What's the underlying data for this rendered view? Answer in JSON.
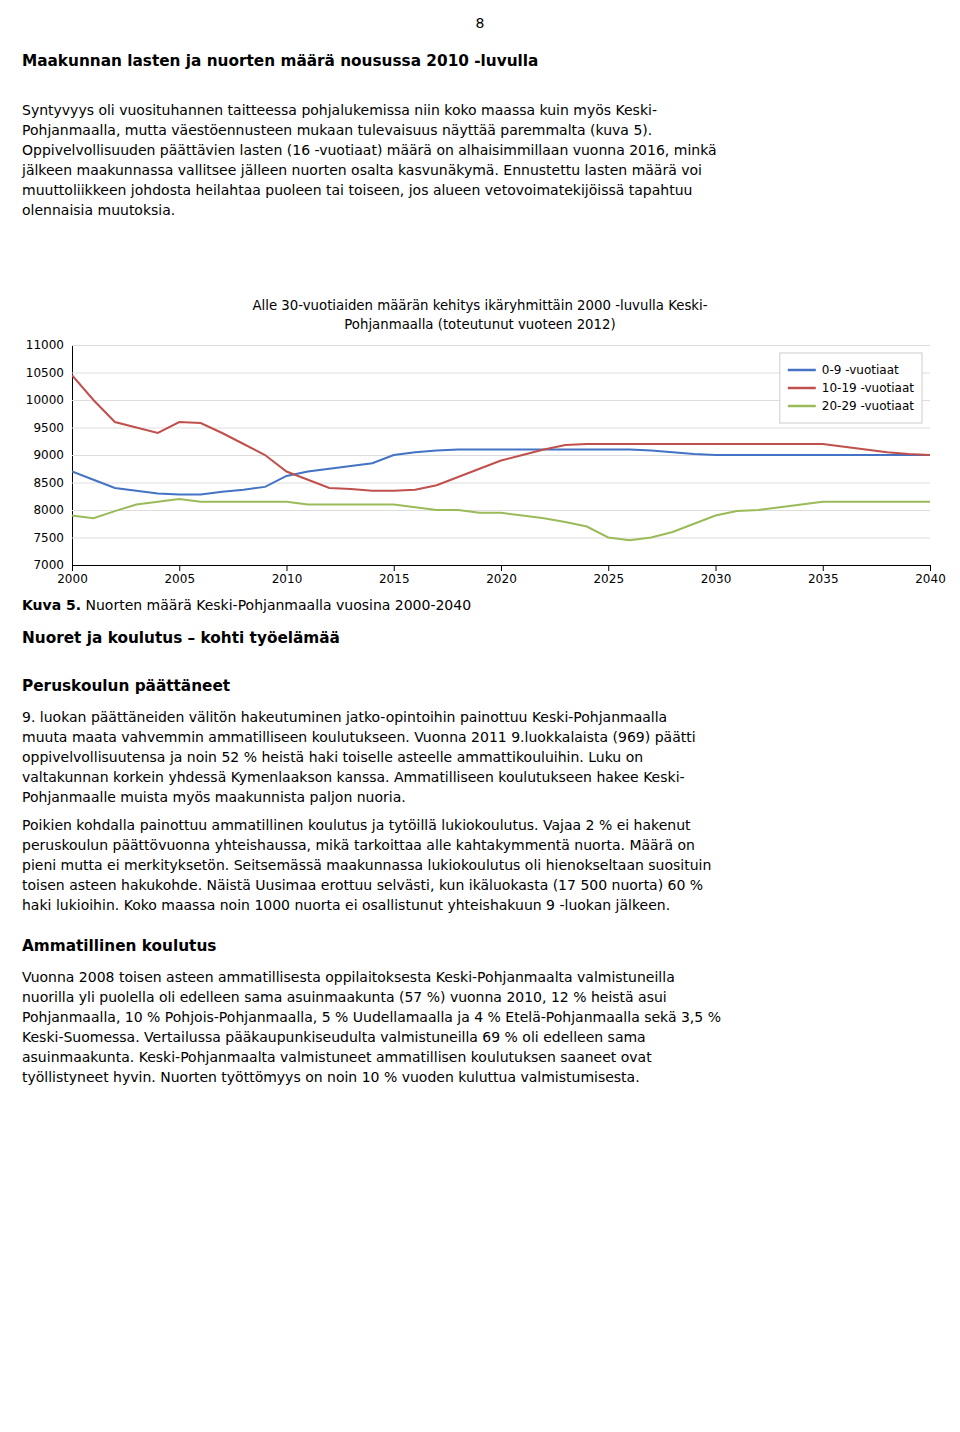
{
  "page_number": "8",
  "headings": [
    "Maakunnan lasten ja nuorten määrä nousussa 2010 -luvulla",
    "Nuoret ja koulutus – kohti työelämää",
    "Peruskoulun päättäneet",
    "Ammatillinen koulutus"
  ],
  "paragraphs": [
    [
      "Syntyvyys oli vuosituhannen taitteessa pohjalukemissa niin koko maassa kuin myös Keski-",
      "Pohjanmaalla, mutta väestöennusteen mukaan tulevaisuus näyttää paremmalta (kuva 5).",
      "Oppivelvollisuuden päättävien lasten (16 -vuotiaat) määrä on alhaisimmillaan vuonna 2016, minkä",
      "jälkeen maakunnassa vallitsee jälleen nuorten osalta kasvunäkymä. Ennustettu lasten määrä voi",
      "muuttoliikkeen johdosta heilahtaa puoleen tai toiseen, jos alueen vetovoimatekijöissä tapahtuu",
      "olennaisia muutoksia."
    ],
    [
      "9. luokan päättäneiden välitön hakeutuminen jatko-opintoihin painottuu Keski-Pohjanmaalla",
      "muuta maata vahvemmin ammatilliseen koulutukseen. Vuonna 2011 9.luokkalaista (969) päätti",
      "oppivelvollisuutensa ja noin 52 % heistä haki toiselle asteelle ammattikouluihin. Luku on",
      "valtakunnan korkein yhdessä Kymenlaakson kanssa. Ammatilliseen koulutukseen hakee Keski-",
      "Pohjanmaalle muista myös maakunnista paljon nuoria."
    ],
    [
      "Poikien kohdalla painottuu ammatillinen koulutus ja tytöillä lukiokoulutus. Vajaa 2 % ei hakenut",
      "peruskoulun päättövuonna yhteishaussa, mikä tarkoittaa alle kahtakymmentä nuorta. Määrä on",
      "pieni mutta ei merkityksetön. Seitsemässä maakunnassa lukiokoulutus oli hienokseltaan suosituin",
      "toisen asteen hakukohde. Näistä Uusimaa erottuu selvästi, kun ikäluokasta (17 500 nuorta) 60 %",
      "haki lukioihin. Koko maassa noin 1000 nuorta ei osallistunut yhteishakuun 9 -luokan jälkeen."
    ],
    [
      "Vuonna 2008 toisen asteen ammatillisesta oppilaitoksesta Keski-Pohjanmaalta valmistuneilla",
      "nuorilla yli puolella oli edelleen sama asuinmaakunta (57 %) vuonna 2010, 12 % heistä asui",
      "Pohjanmaalla, 10 % Pohjois-Pohjanmaalla, 5 % Uudellamaalla ja 4 % Etelä-Pohjanmaalla sekä 3,5 %",
      "Keski-Suomessa. Vertailussa pääkaupunkiseudulta valmistuneilla 69 % oli edelleen sama",
      "asuinmaakunta. Keski-Pohjanmaalta valmistuneet ammatillisen koulutuksen saaneet ovat",
      "työllistyneet hyvin. Nuorten työttömyys on noin 10 % vuoden kuluttua valmistumisesta."
    ]
  ],
  "caption": {
    "label": "Kuva 5.",
    "text": " Nuorten määrä Keski-Pohjanmaalla vuosina 2000-2040"
  },
  "chart_data": {
    "type": "line",
    "title": [
      "Alle 30-vuotiaiden määrän kehitys ikäryhmittäin 2000 -luvulla Keski-",
      "Pohjanmaalla (toteutunut vuoteen 2012)"
    ],
    "x": [
      2000,
      2001,
      2002,
      2003,
      2004,
      2005,
      2006,
      2007,
      2008,
      2009,
      2010,
      2011,
      2012,
      2013,
      2014,
      2015,
      2016,
      2017,
      2018,
      2019,
      2020,
      2021,
      2022,
      2023,
      2024,
      2025,
      2026,
      2027,
      2028,
      2029,
      2030,
      2031,
      2032,
      2033,
      2034,
      2035,
      2036,
      2037,
      2038,
      2039,
      2040
    ],
    "series": [
      {
        "name": "0-9 -vuotiaat",
        "color": "#4472C4",
        "values": [
          8700,
          8550,
          8400,
          8350,
          8300,
          8280,
          8280,
          8330,
          8370,
          8420,
          8620,
          8700,
          8750,
          8800,
          8850,
          9000,
          9050,
          9080,
          9100,
          9100,
          9100,
          9100,
          9100,
          9100,
          9100,
          9100,
          9100,
          9080,
          9050,
          9020,
          9000,
          9000,
          9000,
          9000,
          9000,
          9000,
          9000,
          9000,
          9000,
          9000,
          9000
        ]
      },
      {
        "name": "10-19 -vuotiaat",
        "color": "#C0504D",
        "values": [
          10450,
          10000,
          9600,
          9500,
          9400,
          9600,
          9580,
          9400,
          9200,
          9000,
          8700,
          8550,
          8400,
          8380,
          8350,
          8350,
          8370,
          8450,
          8600,
          8750,
          8900,
          9000,
          9100,
          9180,
          9200,
          9200,
          9200,
          9200,
          9200,
          9200,
          9200,
          9200,
          9200,
          9200,
          9200,
          9200,
          9150,
          9100,
          9050,
          9020,
          9000
        ]
      },
      {
        "name": "20-29 -vuotiaat",
        "color": "#9BBB59",
        "values": [
          7900,
          7850,
          7980,
          8100,
          8150,
          8200,
          8150,
          8150,
          8150,
          8150,
          8150,
          8100,
          8100,
          8100,
          8100,
          8100,
          8050,
          8000,
          8000,
          7950,
          7950,
          7900,
          7850,
          7780,
          7700,
          7500,
          7450,
          7500,
          7600,
          7750,
          7900,
          7980,
          8000,
          8050,
          8100,
          8150,
          8150,
          8150,
          8150,
          8150,
          8150
        ]
      }
    ],
    "xlim": [
      2000,
      2040
    ],
    "xticks": [
      2000,
      2005,
      2010,
      2015,
      2020,
      2025,
      2030,
      2035,
      2040
    ],
    "ylim": [
      7000,
      11000
    ],
    "yticks": [
      7000,
      7500,
      8000,
      8500,
      9000,
      9500,
      10000,
      10500,
      11000
    ],
    "grid": "y",
    "legend": "upper right"
  }
}
